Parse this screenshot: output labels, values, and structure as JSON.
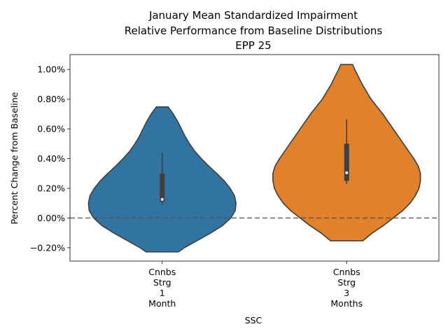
{
  "chart_data": {
    "type": "violin",
    "title_lines": [
      "January Mean Standardized Impairment",
      "Relative Performance from Baseline Distributions",
      "EPP 25"
    ],
    "xlabel": "SSC",
    "ylabel": "Percent Change from Baseline",
    "ylim": [
      -0.29,
      1.1
    ],
    "yticks": [
      -0.2,
      0.0,
      0.2,
      0.4,
      0.6,
      0.8,
      1.0
    ],
    "ytick_labels": [
      "−0.20%",
      "0.00%",
      "0.20%",
      "0.40%",
      "0.60%",
      "0.80%",
      "1.00%"
    ],
    "reference_line": {
      "y": 0.0,
      "style": "dashed"
    },
    "grid": false,
    "categories": [
      {
        "label_lines": [
          "Cnnbs",
          "Strg",
          "1",
          "Month"
        ],
        "color": "#3274a1",
        "density": [
          [
            -0.228,
            0.22
          ],
          [
            -0.2,
            0.3
          ],
          [
            -0.15,
            0.48
          ],
          [
            -0.1,
            0.66
          ],
          [
            -0.05,
            0.82
          ],
          [
            0.0,
            0.93
          ],
          [
            0.05,
            0.99
          ],
          [
            0.1,
            1.0
          ],
          [
            0.15,
            0.98
          ],
          [
            0.2,
            0.92
          ],
          [
            0.25,
            0.84
          ],
          [
            0.3,
            0.74
          ],
          [
            0.35,
            0.63
          ],
          [
            0.4,
            0.53
          ],
          [
            0.45,
            0.44
          ],
          [
            0.5,
            0.37
          ],
          [
            0.55,
            0.31
          ],
          [
            0.6,
            0.26
          ],
          [
            0.65,
            0.21
          ],
          [
            0.7,
            0.15
          ],
          [
            0.748,
            0.08
          ]
        ],
        "whisker": [
          0.09,
          0.44
        ],
        "iqr": [
          0.11,
          0.3
        ],
        "median": 0.125
      },
      {
        "label_lines": [
          "Cnnbs",
          "Strg",
          "3",
          "Months"
        ],
        "color": "#e1812c",
        "density": [
          [
            -0.153,
            0.22
          ],
          [
            -0.1,
            0.35
          ],
          [
            -0.05,
            0.5
          ],
          [
            0.0,
            0.63
          ],
          [
            0.05,
            0.76
          ],
          [
            0.1,
            0.86
          ],
          [
            0.15,
            0.93
          ],
          [
            0.2,
            0.98
          ],
          [
            0.25,
            1.0
          ],
          [
            0.3,
            1.0
          ],
          [
            0.35,
            0.97
          ],
          [
            0.4,
            0.91
          ],
          [
            0.45,
            0.84
          ],
          [
            0.5,
            0.77
          ],
          [
            0.55,
            0.7
          ],
          [
            0.6,
            0.63
          ],
          [
            0.65,
            0.56
          ],
          [
            0.7,
            0.49
          ],
          [
            0.75,
            0.41
          ],
          [
            0.8,
            0.33
          ],
          [
            0.85,
            0.27
          ],
          [
            0.9,
            0.21
          ],
          [
            0.95,
            0.16
          ],
          [
            1.0,
            0.11
          ],
          [
            1.033,
            0.08
          ]
        ],
        "whisker": [
          0.23,
          0.665
        ],
        "iqr": [
          0.25,
          0.5
        ],
        "median": 0.305
      }
    ]
  }
}
